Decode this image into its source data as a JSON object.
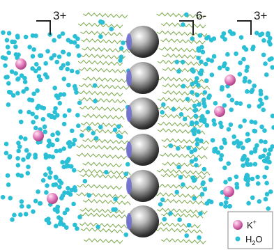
{
  "labels": [
    "3+",
    "6-",
    "3+"
  ],
  "legend": {
    "items": [
      {
        "text": "K",
        "sup": "+"
      },
      {
        "text": "H",
        "sub": "2",
        "rest": "O"
      }
    ]
  }
}
